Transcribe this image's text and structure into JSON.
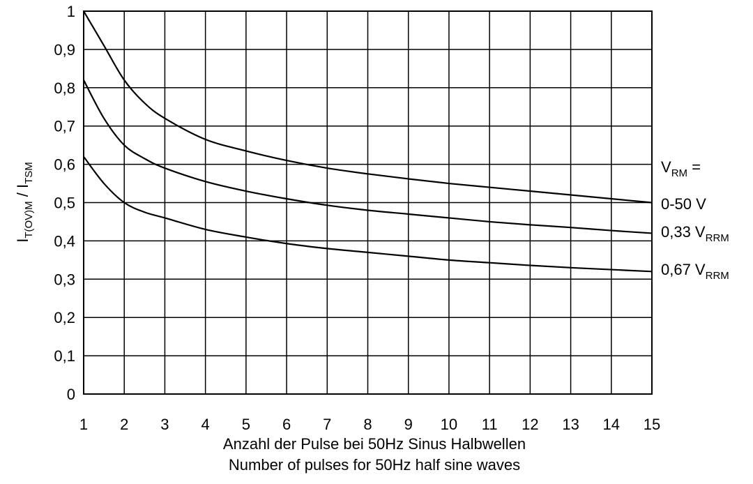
{
  "chart_data": {
    "type": "line",
    "title": "",
    "xlabel_line1": "Anzahl der Pulse bei 50Hz Sinus Halbwellen",
    "xlabel_line2": "Number of pulses for 50Hz half sine waves",
    "ylabel": {
      "main1": "I",
      "sub1": "T(OV)M",
      "sep": " / ",
      "main2": "I",
      "sub2": "TSM"
    },
    "xlim": [
      1,
      15
    ],
    "ylim": [
      0,
      1
    ],
    "x_ticks": [
      1,
      2,
      3,
      4,
      5,
      6,
      7,
      8,
      9,
      10,
      11,
      12,
      13,
      14,
      15
    ],
    "x_tick_labels": [
      "1",
      "2",
      "3",
      "4",
      "5",
      "6",
      "7",
      "8",
      "9",
      "10",
      "11",
      "12",
      "13",
      "14",
      "15"
    ],
    "y_ticks": [
      0,
      0.1,
      0.2,
      0.3,
      0.4,
      0.5,
      0.6,
      0.7,
      0.8,
      0.9,
      1
    ],
    "y_tick_labels": [
      "0",
      "0,1",
      "0,2",
      "0,3",
      "0,4",
      "0,5",
      "0,6",
      "0,7",
      "0,8",
      "0,9",
      "1"
    ],
    "grid": true,
    "legend_header": {
      "main": "V",
      "sub": "RM",
      "suffix": " ="
    },
    "series": [
      {
        "name": "0-50 V",
        "label": {
          "main": "0-50 V",
          "sub": ""
        },
        "x": [
          1,
          1.5,
          2,
          2.5,
          3,
          4,
          5,
          6,
          7,
          8,
          9,
          10,
          11,
          12,
          13,
          14,
          15
        ],
        "values": [
          1.0,
          0.91,
          0.82,
          0.76,
          0.72,
          0.665,
          0.635,
          0.61,
          0.59,
          0.575,
          0.562,
          0.55,
          0.54,
          0.53,
          0.52,
          0.51,
          0.5
        ]
      },
      {
        "name": "0,33 VRRM",
        "label": {
          "main": "0,33 V",
          "sub": "RRM"
        },
        "x": [
          1,
          1.5,
          2,
          2.5,
          3,
          4,
          5,
          6,
          7,
          8,
          9,
          10,
          11,
          12,
          13,
          14,
          15
        ],
        "values": [
          0.82,
          0.72,
          0.65,
          0.615,
          0.59,
          0.555,
          0.53,
          0.51,
          0.493,
          0.48,
          0.47,
          0.46,
          0.45,
          0.442,
          0.435,
          0.427,
          0.42
        ]
      },
      {
        "name": "0,67 VRRM",
        "label": {
          "main": "0,67 V",
          "sub": "RRM"
        },
        "x": [
          1,
          1.5,
          2,
          2.5,
          3,
          4,
          5,
          6,
          7,
          8,
          9,
          10,
          11,
          12,
          13,
          14,
          15
        ],
        "values": [
          0.62,
          0.55,
          0.5,
          0.475,
          0.46,
          0.43,
          0.41,
          0.393,
          0.38,
          0.37,
          0.36,
          0.35,
          0.343,
          0.336,
          0.33,
          0.325,
          0.32
        ]
      }
    ]
  }
}
